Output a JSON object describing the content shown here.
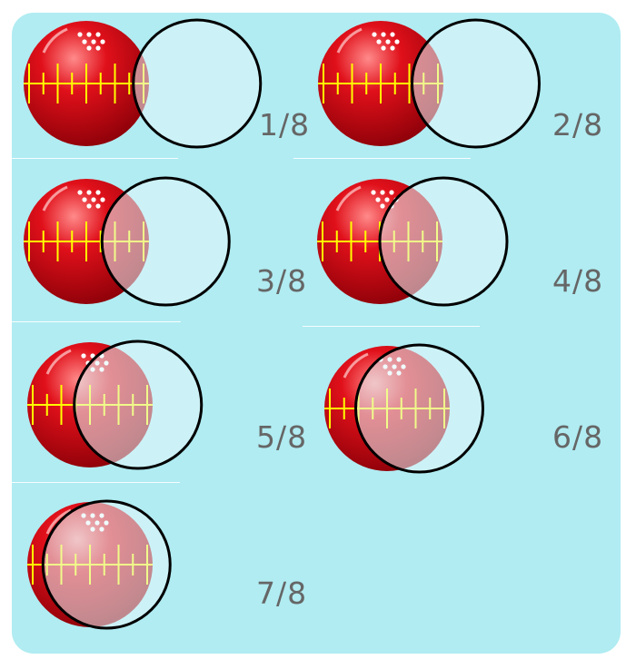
{
  "colors": {
    "panel_bg": "#b0ecf2",
    "ball_red": "#e0101a",
    "ruler": "#ffff00",
    "overlay_fill": "#e4f8fb",
    "outline": "#000000",
    "label": "#666666"
  },
  "steps": [
    {
      "label": "1/8",
      "overlap_fraction": 0.125
    },
    {
      "label": "2/8",
      "overlap_fraction": 0.25
    },
    {
      "label": "3/8",
      "overlap_fraction": 0.375
    },
    {
      "label": "4/8",
      "overlap_fraction": 0.5
    },
    {
      "label": "5/8",
      "overlap_fraction": 0.625
    },
    {
      "label": "6/8",
      "overlap_fraction": 0.75
    },
    {
      "label": "7/8",
      "overlap_fraction": 0.875
    }
  ]
}
